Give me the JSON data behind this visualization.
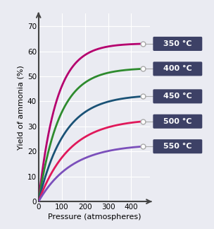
{
  "title": "",
  "xlabel": "Pressure (atmospheres)",
  "ylabel": "Yield of ammonia (%)",
  "xlim": [
    0,
    480
  ],
  "ylim": [
    0,
    75
  ],
  "xticks": [
    0,
    100,
    200,
    300,
    400
  ],
  "yticks": [
    0,
    10,
    20,
    30,
    40,
    50,
    60,
    70
  ],
  "bg_color": "#eaebf2",
  "grid_color": "#ffffff",
  "series": [
    {
      "label": "350 °C",
      "color": "#b5006e",
      "end_value": 63,
      "k": 0.013
    },
    {
      "label": "400 °C",
      "color": "#2e8b2e",
      "end_value": 53,
      "k": 0.011
    },
    {
      "label": "450 °C",
      "color": "#1a5276",
      "end_value": 42,
      "k": 0.009
    },
    {
      "label": "500 °C",
      "color": "#e0185a",
      "end_value": 32,
      "k": 0.0075
    },
    {
      "label": "550 °C",
      "color": "#7b4fbb",
      "end_value": 22,
      "k": 0.007
    }
  ],
  "label_box_color": "#3d4166",
  "label_text_color": "#ffffff",
  "marker_color": "#ffffff",
  "marker_edge_color": "#aaaaaa",
  "end_pressure": 450,
  "figsize": [
    3.04,
    3.24
  ],
  "dpi": 100
}
